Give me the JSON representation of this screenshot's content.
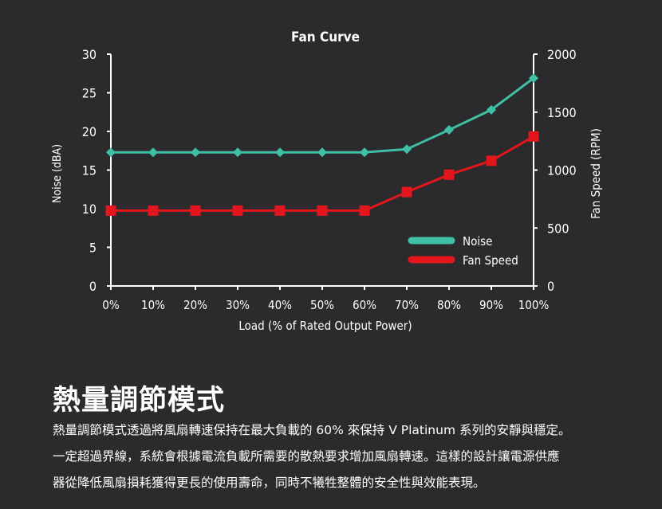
{
  "chart_data": {
    "type": "line",
    "title": "Fan Curve",
    "xlabel": "Load (% of Rated Output Power)",
    "ylabel": "Noise (dBA)",
    "y2label": "Fan Speed (RPM)",
    "categories": [
      "0%",
      "10%",
      "20%",
      "30%",
      "40%",
      "50%",
      "60%",
      "70%",
      "80%",
      "90%",
      "100%"
    ],
    "x": [
      0,
      10,
      20,
      30,
      40,
      50,
      60,
      70,
      80,
      90,
      100
    ],
    "ylim": [
      0,
      30
    ],
    "y2lim": [
      0,
      2000
    ],
    "yticks": [
      0,
      5,
      10,
      15,
      20,
      25,
      30
    ],
    "y2ticks": [
      0,
      500,
      1000,
      1500,
      2000
    ],
    "series": [
      {
        "name": "Noise",
        "axis": "left",
        "color": "#3fbfa5",
        "marker": "diamond",
        "values": [
          17.3,
          17.3,
          17.3,
          17.3,
          17.3,
          17.3,
          17.3,
          17.7,
          20.2,
          22.8,
          26.9
        ]
      },
      {
        "name": "Fan Speed",
        "axis": "right",
        "color": "#e3161d",
        "marker": "square",
        "values": [
          650,
          650,
          650,
          650,
          650,
          650,
          650,
          810,
          960,
          1080,
          1290
        ]
      }
    ],
    "legend": "bottom-right",
    "grid": false
  },
  "section": {
    "title": "熱量調節模式",
    "lines": [
      "熱量調節模式透過將風扇轉速保持在最大負載的 60% 來保持 V Platinum 系列的安靜與穩定。",
      "一定超過界線，系統會根據電流負載所需要的散熱要求增加風扇轉速。這樣的設計讓電源供應",
      "器從降低風扇損耗獲得更長的使用壽命，同時不犧牲整體的安全性與效能表現。"
    ]
  }
}
